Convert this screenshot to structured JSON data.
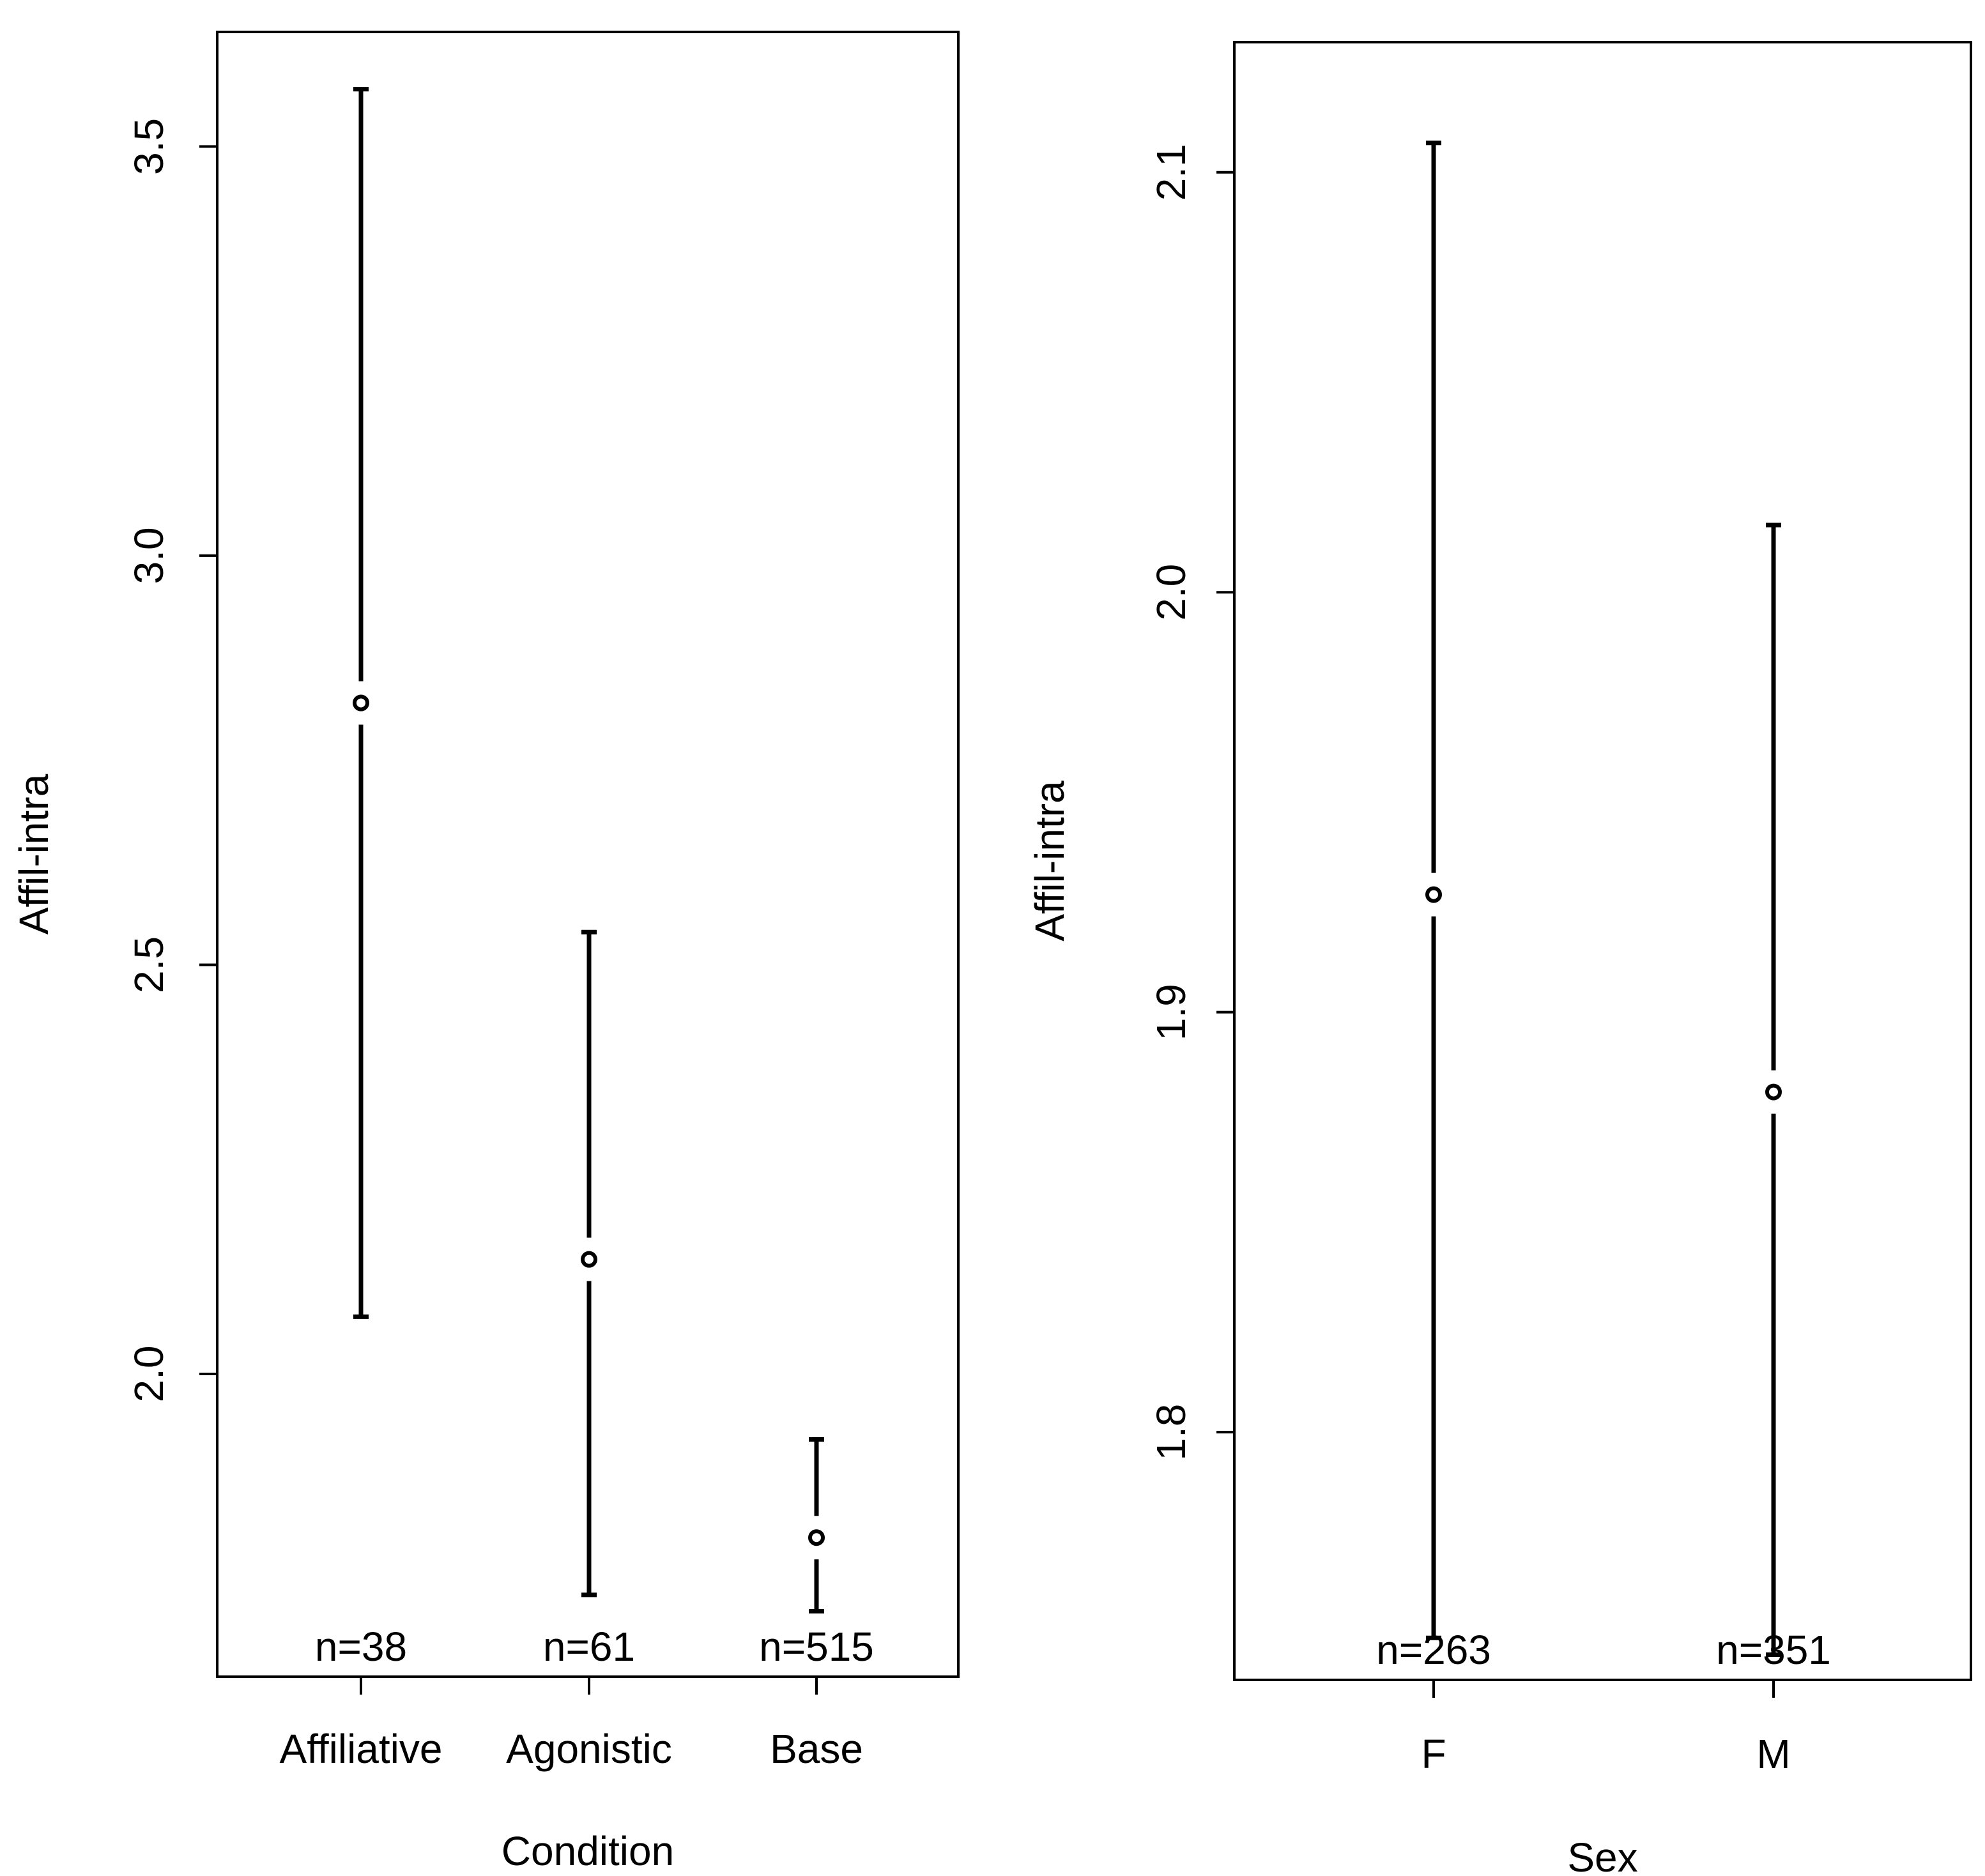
{
  "chart_data": [
    {
      "type": "errorbar",
      "xlabel": "Condition",
      "ylabel": "Affil-intra",
      "categories": [
        "Affiliative",
        "Agonistic",
        "Base"
      ],
      "n_labels": [
        "n=38",
        "n=61",
        "n=515"
      ],
      "means": [
        2.82,
        2.14,
        1.8
      ],
      "lower": [
        2.07,
        1.73,
        1.71
      ],
      "upper": [
        3.57,
        2.54,
        1.92
      ],
      "ylim": [
        1.63,
        3.64
      ],
      "yticks": [
        2.0,
        2.5,
        3.0,
        3.5
      ],
      "ytick_labels": [
        "2.0",
        "2.5",
        "3.0",
        "3.5"
      ]
    },
    {
      "type": "errorbar",
      "xlabel": "Sex",
      "ylabel": "Affil-intra",
      "categories": [
        "F",
        "M"
      ],
      "n_labels": [
        "n=263",
        "n=351"
      ],
      "means": [
        1.928,
        1.881
      ],
      "lower": [
        1.751,
        1.747
      ],
      "upper": [
        2.107,
        2.016
      ],
      "ylim": [
        1.741,
        2.131
      ],
      "yticks": [
        1.8,
        1.9,
        2.0,
        2.1
      ],
      "ytick_labels": [
        "1.8",
        "1.9",
        "2.0",
        "2.1"
      ]
    }
  ]
}
